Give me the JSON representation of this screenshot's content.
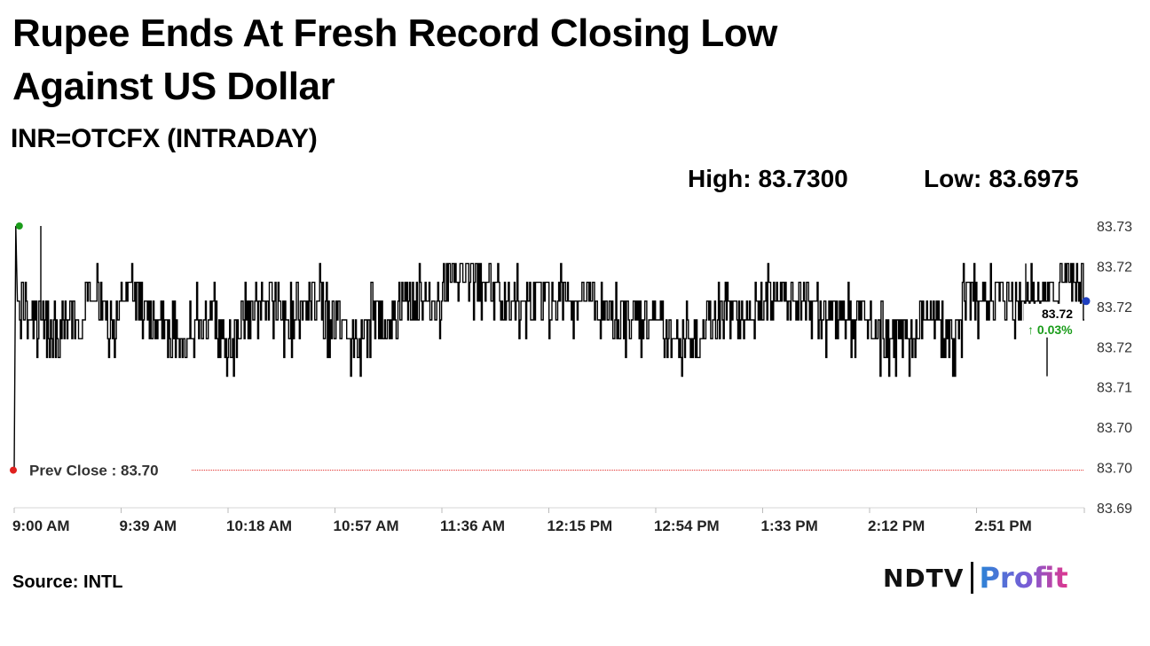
{
  "headline": {
    "line1": "Rupee Ends At Fresh Record Closing Low",
    "line2": "Against US Dollar"
  },
  "subtitle": "INR=OTCFX (INTRADAY)",
  "stats": {
    "high_label": "High:",
    "high_value": "83.7300",
    "low_label": "Low:",
    "low_value": "83.6975"
  },
  "source": "Source: INTL",
  "logo": {
    "brand": "NDTV",
    "product": "Profit"
  },
  "chart_data": {
    "type": "line",
    "title": "INR=OTCFX (INTRADAY)",
    "y_ticks": [
      "83.73",
      "83.72",
      "83.72",
      "83.72",
      "83.71",
      "83.70",
      "83.70",
      "83.69"
    ],
    "ylim": [
      83.6925,
      83.73
    ],
    "x_ticks": [
      "9:00 AM",
      "9:39 AM",
      "10:18 AM",
      "10:57 AM",
      "11:36 AM",
      "12:15 PM",
      "12:54 PM",
      "1:33 PM",
      "2:12 PM",
      "2:51 PM"
    ],
    "x_range_minutes": [
      0,
      402
    ],
    "prev_close": {
      "label": "Prev Close : 83.70",
      "value": 83.6975
    },
    "last": {
      "value_label": "83.72",
      "change_label": "↑ 0.03%"
    },
    "series": [
      {
        "color": "#000000",
        "levels": [
          [
            0,
            83.6975
          ],
          [
            1,
            83.73
          ],
          [
            2,
            83.72
          ],
          [
            6,
            83.7175
          ],
          [
            12,
            83.715
          ],
          [
            18,
            83.7175
          ],
          [
            26,
            83.72
          ],
          [
            34,
            83.7175
          ],
          [
            40,
            83.72
          ],
          [
            48,
            83.7175
          ],
          [
            56,
            83.715
          ],
          [
            68,
            83.7175
          ],
          [
            76,
            83.715
          ],
          [
            84,
            83.7175
          ],
          [
            92,
            83.72
          ],
          [
            100,
            83.7175
          ],
          [
            108,
            83.72
          ],
          [
            116,
            83.7175
          ],
          [
            124,
            83.715
          ],
          [
            134,
            83.7175
          ],
          [
            144,
            83.72
          ],
          [
            160,
            83.7225
          ],
          [
            170,
            83.7225
          ],
          [
            182,
            83.72
          ],
          [
            196,
            83.72
          ],
          [
            206,
            83.72
          ],
          [
            218,
            83.7175
          ],
          [
            234,
            83.7175
          ],
          [
            246,
            83.715
          ],
          [
            260,
            83.7175
          ],
          [
            272,
            83.7175
          ],
          [
            280,
            83.72
          ],
          [
            292,
            83.72
          ],
          [
            302,
            83.7175
          ],
          [
            312,
            83.7175
          ],
          [
            322,
            83.715
          ],
          [
            332,
            83.715
          ],
          [
            340,
            83.7175
          ],
          [
            348,
            83.715
          ],
          [
            356,
            83.72
          ],
          [
            366,
            83.72
          ],
          [
            376,
            83.72
          ],
          [
            384,
            83.72
          ],
          [
            392,
            83.7225
          ],
          [
            402,
            83.72
          ]
        ]
      }
    ],
    "grid": false,
    "markers": {
      "open_color": "#1a9c1a",
      "close_color": "#1f3fbf",
      "prev_close_color": "#e0211e"
    }
  }
}
